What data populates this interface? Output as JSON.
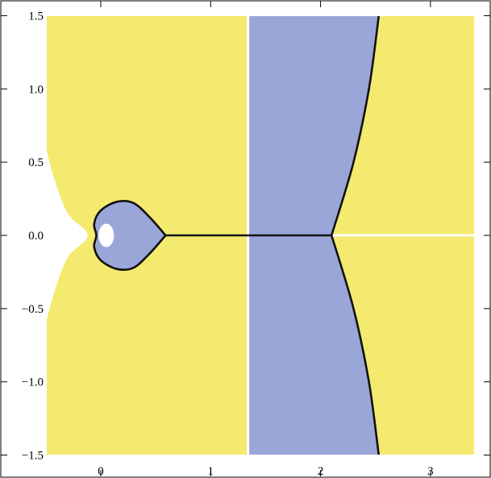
{
  "chart_data": {
    "type": "area",
    "title": "",
    "xlabel": "",
    "ylabel": "",
    "xlim": [
      -0.5,
      3.5
    ],
    "ylim": [
      -1.5,
      1.5
    ],
    "grid": false,
    "x_ticks": [
      0,
      1,
      2,
      3
    ],
    "x_tick_labels": [
      "0",
      "1",
      "2",
      "3"
    ],
    "y_ticks": [
      -1.5,
      -1.0,
      -0.5,
      0.0,
      0.5,
      1.0,
      1.5
    ],
    "y_tick_labels": [
      "−1.5",
      "−1.0",
      "−0.5",
      "0.0",
      "0.5",
      "1.0",
      "1.5"
    ],
    "regions": [
      {
        "id": "yellow-region",
        "color": "#f3ea6f"
      },
      {
        "id": "blue-region",
        "color": "#9aa6d8"
      },
      {
        "id": "white-region",
        "color": "#ffffff"
      }
    ],
    "blue_band": {
      "x_from": 1.34,
      "x_to": 2.1,
      "upper_boundary": [
        [
          2.1,
          0.0
        ],
        [
          2.3,
          0.5
        ],
        [
          2.44,
          1.0
        ],
        [
          2.53,
          1.5
        ]
      ],
      "lower_boundary": [
        [
          2.1,
          0.0
        ],
        [
          2.3,
          -0.5
        ],
        [
          2.44,
          -1.0
        ],
        [
          2.53,
          -1.5
        ]
      ]
    },
    "heart_loop": [
      [
        0.59,
        0.0
      ],
      [
        0.45,
        0.12
      ],
      [
        0.3,
        0.22
      ],
      [
        0.15,
        0.23
      ],
      [
        0.0,
        0.17
      ],
      [
        -0.06,
        0.08
      ],
      [
        -0.04,
        0.0
      ],
      [
        -0.06,
        -0.08
      ],
      [
        0.0,
        -0.17
      ],
      [
        0.15,
        -0.23
      ],
      [
        0.3,
        -0.22
      ],
      [
        0.45,
        -0.12
      ],
      [
        0.59,
        0.0
      ]
    ],
    "white_wedge": [
      [
        -0.5,
        0.6
      ],
      [
        -0.42,
        0.38
      ],
      [
        -0.3,
        0.15
      ],
      [
        -0.12,
        0.0
      ],
      [
        -0.3,
        -0.15
      ],
      [
        -0.42,
        -0.38
      ],
      [
        -0.5,
        -0.6
      ]
    ],
    "white_hole": {
      "center": [
        0.05,
        0.0
      ],
      "rx": 0.07,
      "ry": 0.08
    },
    "black_curves": [
      {
        "id": "real-axis-segment",
        "points": [
          [
            0.59,
            0.0
          ],
          [
            2.1,
            0.0
          ]
        ]
      },
      {
        "id": "upper-branch",
        "points": [
          [
            2.1,
            0.0
          ],
          [
            2.3,
            0.5
          ],
          [
            2.44,
            1.0
          ],
          [
            2.53,
            1.5
          ]
        ]
      },
      {
        "id": "lower-branch",
        "points": [
          [
            2.1,
            0.0
          ],
          [
            2.3,
            -0.5
          ],
          [
            2.44,
            -1.0
          ],
          [
            2.53,
            -1.5
          ]
        ]
      }
    ]
  }
}
